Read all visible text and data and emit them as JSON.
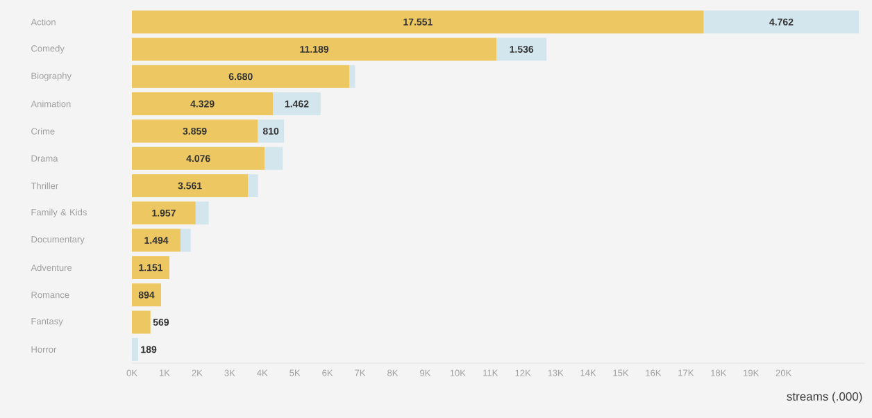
{
  "chart_data": {
    "type": "bar",
    "orientation": "horizontal",
    "stacked": true,
    "categories": [
      "Action",
      "Comedy",
      "Biography",
      "Animation",
      "Crime",
      "Drama",
      "Thriller",
      "Family & Kids",
      "Documentary",
      "Adventure",
      "Romance",
      "Fantasy",
      "Horror"
    ],
    "series": [
      {
        "color": "#ecc762",
        "values": [
          17551,
          11189,
          6680,
          4329,
          3859,
          4076,
          3561,
          1957,
          1494,
          1151,
          894,
          569,
          null
        ],
        "value_labels": [
          "17.551",
          "11.189",
          "6.680",
          "4.329",
          "3.859",
          "4.076",
          "3.561",
          "1.957",
          "1.494",
          "1.151",
          "894",
          "569",
          null
        ]
      },
      {
        "color": "#d3e6ee",
        "values": [
          4762,
          1536,
          170,
          1462,
          810,
          550,
          310,
          400,
          310,
          null,
          null,
          null,
          189
        ],
        "value_labels": [
          "4.762",
          "1.536",
          null,
          "1.462",
          "810",
          null,
          null,
          null,
          null,
          null,
          null,
          null,
          "189"
        ]
      }
    ],
    "xlim": [
      0,
      22500
    ],
    "xticks": [
      {
        "value": 0,
        "label": "0K"
      },
      {
        "value": 1000,
        "label": "1K"
      },
      {
        "value": 2000,
        "label": "2K"
      },
      {
        "value": 3000,
        "label": "3K"
      },
      {
        "value": 4000,
        "label": "4K"
      },
      {
        "value": 5000,
        "label": "5K"
      },
      {
        "value": 6000,
        "label": "6K"
      },
      {
        "value": 7000,
        "label": "7K"
      },
      {
        "value": 8000,
        "label": "8K"
      },
      {
        "value": 9000,
        "label": "9K"
      },
      {
        "value": 10000,
        "label": "10K"
      },
      {
        "value": 11000,
        "label": "11K"
      },
      {
        "value": 12000,
        "label": "12K"
      },
      {
        "value": 13000,
        "label": "13K"
      },
      {
        "value": 14000,
        "label": "14K"
      },
      {
        "value": 15000,
        "label": "15K"
      },
      {
        "value": 16000,
        "label": "16K"
      },
      {
        "value": 17000,
        "label": "17K"
      },
      {
        "value": 18000,
        "label": "18K"
      },
      {
        "value": 19000,
        "label": "19K"
      },
      {
        "value": 20000,
        "label": "20K"
      }
    ],
    "xlabel": "streams (.000)"
  }
}
